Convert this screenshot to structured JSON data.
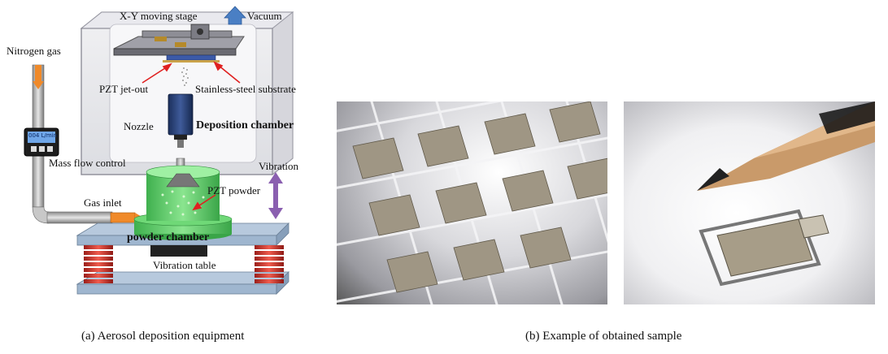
{
  "panel_a": {
    "labels": {
      "xy_stage": "X-Y moving stage",
      "vacuum": "Vacuum",
      "nitrogen": "Nitrogen gas",
      "pzt_jet": "PZT jet-out",
      "substrate": "Stainless-steel substrate",
      "nozzle": "Nozzle",
      "deposition": "Deposition chamber",
      "flow_meter": "004 L/min",
      "mass_flow": "Mass flow control",
      "vibration": "Vibration",
      "gas_inlet": "Gas inlet",
      "pzt_powder": "PZT powder",
      "powder_chamber": "powder chamber",
      "vibration_table": "Vibration table"
    },
    "caption": "(a) Aerosol deposition equipment"
  },
  "panel_b": {
    "caption": "(b) Example of obtained sample"
  },
  "colors": {
    "green": "#5fd36a",
    "spring": "#d9453b",
    "table": "#9fb6cf",
    "arrow_red": "#e02020",
    "vibration_arrow": "#8a5fb0",
    "vacuum_arrow": "#4a7fc4",
    "gas_pipe": "#f08a2a"
  }
}
